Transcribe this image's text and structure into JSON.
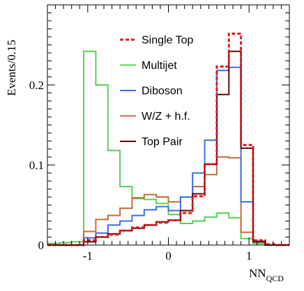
{
  "chart_data": {
    "type": "line",
    "ylabel": "Events/0.15",
    "xlabel_main": "NN",
    "xlabel_sub": "QCD",
    "xlim": [
      -1.5,
      1.5
    ],
    "ylim": [
      0,
      0.3
    ],
    "x_ticks": [
      -1,
      0,
      1
    ],
    "y_ticks": [
      0,
      0.1,
      0.2
    ],
    "y_tick_labels": [
      "0",
      "0.1",
      "0.2"
    ],
    "x_tick_labels": [
      "-1",
      "0",
      "1"
    ],
    "grid": false,
    "legend_position": "top-right",
    "bin_edges": [
      -1.5,
      -1.35,
      -1.2,
      -1.05,
      -0.9,
      -0.75,
      -0.6,
      -0.45,
      -0.3,
      -0.15,
      0,
      0.15,
      0.3,
      0.45,
      0.6,
      0.75,
      0.9,
      1.05,
      1.2,
      1.35,
      1.5
    ],
    "series": [
      {
        "name": "Single Top",
        "color": "#e8151b",
        "style": "dashed",
        "values": [
          0,
          0,
          0,
          0.006,
          0.01,
          0.013,
          0.018,
          0.022,
          0.025,
          0.028,
          0.031,
          0.04,
          0.061,
          0.101,
          0.223,
          0.264,
          0.125,
          0.006,
          0.001,
          0
        ]
      },
      {
        "name": "Multijet",
        "color": "#55d155",
        "style": "solid",
        "values": [
          0.002,
          0.003,
          0.004,
          0.242,
          0.2,
          0.118,
          0.073,
          0.058,
          0.057,
          0.052,
          0.038,
          0.027,
          0.03,
          0.035,
          0.04,
          0.034,
          0.008,
          0.002,
          0,
          0
        ]
      },
      {
        "name": "Diboson",
        "color": "#3a6fe0",
        "style": "solid",
        "values": [
          0,
          0,
          0,
          0.009,
          0.015,
          0.025,
          0.03,
          0.037,
          0.044,
          0.048,
          0.043,
          0.06,
          0.09,
          0.131,
          0.218,
          0.222,
          0.054,
          0.005,
          0,
          0
        ]
      },
      {
        "name": "W/Z + h.f.",
        "color": "#c8683a",
        "style": "solid",
        "values": [
          0,
          0,
          0,
          0.017,
          0.032,
          0.037,
          0.046,
          0.059,
          0.063,
          0.06,
          0.054,
          0.06,
          0.073,
          0.088,
          0.11,
          0.109,
          0.016,
          0.004,
          0,
          0
        ]
      },
      {
        "name": "Top Pair",
        "color": "#5a0a0a",
        "style": "solid",
        "values": [
          0,
          0,
          0,
          0.004,
          0.01,
          0.014,
          0.018,
          0.021,
          0.025,
          0.029,
          0.031,
          0.043,
          0.064,
          0.101,
          0.188,
          0.242,
          0.121,
          0.004,
          0,
          0
        ]
      }
    ]
  }
}
